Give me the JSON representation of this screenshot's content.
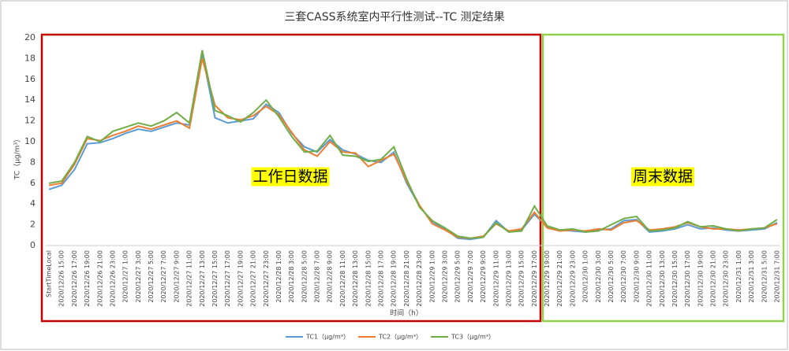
{
  "chart_data": {
    "type": "line",
    "title": "三套CASS系统室内平行性测试--TC 测定结果",
    "y_label": "TC（μg/m³）",
    "x_label": "时间（h）",
    "annotations": [
      "工作日数据",
      "周末数据"
    ],
    "grid": false,
    "ylim": [
      0,
      20
    ],
    "yticks": [
      0,
      2,
      4,
      6,
      8,
      10,
      12,
      14,
      16,
      18,
      20
    ],
    "categories": [
      "StartTimeLocal",
      "2020/12/26 15:00",
      "2020/12/26 17:00",
      "2020/12/26 19:00",
      "2020/12/26 21:00",
      "2020/12/26 23:00",
      "2020/12/27 1:00",
      "2020/12/27 3:00",
      "2020/12/27 5:00",
      "2020/12/27 7:00",
      "2020/12/27 9:00",
      "2020/12/27 11:00",
      "2020/12/27 13:00",
      "2020/12/27 15:00",
      "2020/12/27 17:00",
      "2020/12/27 19:00",
      "2020/12/27 21:00",
      "2020/12/27 23:00",
      "2020/12/28 1:00",
      "2020/12/28 3:00",
      "2020/12/28 5:00",
      "2020/12/28 7:00",
      "2020/12/28 9:00",
      "2020/12/28 11:00",
      "2020/12/28 13:00",
      "2020/12/28 15:00",
      "2020/12/28 17:00",
      "2020/12/28 19:00",
      "2020/12/28 21:00",
      "2020/12/28 23:00",
      "2020/12/29 1:00",
      "2020/12/29 3:00",
      "2020/12/29 5:00",
      "2020/12/29 7:00",
      "2020/12/29 9:00",
      "2020/12/29 11:00",
      "2020/12/29 13:00",
      "2020/12/29 15:00",
      "2020/12/29 17:00",
      "2020/12/29 19:00",
      "2020/12/29 21:00",
      "2020/12/29 23:00",
      "2020/12/30 1:00",
      "2020/12/30 3:00",
      "2020/12/30 5:00",
      "2020/12/30 7:00",
      "2020/12/30 9:00",
      "2020/12/30 11:00",
      "2020/12/30 13:00",
      "2020/12/30 15:00",
      "2020/12/30 17:00",
      "2020/12/30 19:00",
      "2020/12/30 21:00",
      "2020/12/30 23:00",
      "2020/12/31 1:00",
      "2020/12/31 3:00",
      "2020/12/31 5:00",
      "2020/12/31 7:00"
    ],
    "series": [
      {
        "name": "TC1（μg/m³）",
        "color": "#5b9bd5",
        "values": [
          5.4,
          5.8,
          7.3,
          9.8,
          9.9,
          10.3,
          10.8,
          11.2,
          11.0,
          11.4,
          11.8,
          11.6,
          18.5,
          12.3,
          11.8,
          12.0,
          12.2,
          13.6,
          12.8,
          10.8,
          9.5,
          9.0,
          10.2,
          9.2,
          8.8,
          8.2,
          8.0,
          9.0,
          6.0,
          3.8,
          2.3,
          1.6,
          0.7,
          0.6,
          0.8,
          2.4,
          1.3,
          1.5,
          3.0,
          1.8,
          1.5,
          1.4,
          1.3,
          1.5,
          1.6,
          2.4,
          2.5,
          1.3,
          1.4,
          1.6,
          2.0,
          1.6,
          1.7,
          1.5,
          1.4,
          1.5,
          1.6,
          2.2
        ]
      },
      {
        "name": "TC2（μg/m³）",
        "color": "#ed7d31",
        "values": [
          5.8,
          6.0,
          7.8,
          10.3,
          10.1,
          10.6,
          11.0,
          11.5,
          11.2,
          11.6,
          12.0,
          11.3,
          18.0,
          13.5,
          12.3,
          12.1,
          12.5,
          13.4,
          12.6,
          10.9,
          9.2,
          8.6,
          10.0,
          9.0,
          8.9,
          7.6,
          8.2,
          8.8,
          6.2,
          3.9,
          2.1,
          1.5,
          0.8,
          0.7,
          0.9,
          2.1,
          1.4,
          1.6,
          3.2,
          1.7,
          1.4,
          1.5,
          1.4,
          1.6,
          1.5,
          2.2,
          2.4,
          1.5,
          1.6,
          1.8,
          2.2,
          1.8,
          1.6,
          1.6,
          1.5,
          1.6,
          1.7,
          2.1
        ]
      },
      {
        "name": "TC3（μg/m³）",
        "color": "#70ad47",
        "values": [
          6.0,
          6.2,
          8.0,
          10.5,
          10.0,
          11.0,
          11.4,
          11.8,
          11.5,
          12.0,
          12.8,
          11.8,
          18.8,
          13.0,
          12.5,
          11.9,
          12.8,
          14.0,
          12.4,
          10.5,
          9.0,
          9.1,
          10.6,
          8.7,
          8.6,
          8.1,
          8.3,
          9.5,
          6.4,
          3.7,
          2.4,
          1.7,
          0.9,
          0.7,
          0.8,
          2.2,
          1.3,
          1.4,
          3.8,
          1.9,
          1.5,
          1.6,
          1.3,
          1.4,
          2.0,
          2.6,
          2.8,
          1.4,
          1.5,
          1.7,
          2.3,
          1.8,
          1.9,
          1.6,
          1.4,
          1.6,
          1.7,
          2.5
        ]
      }
    ]
  }
}
